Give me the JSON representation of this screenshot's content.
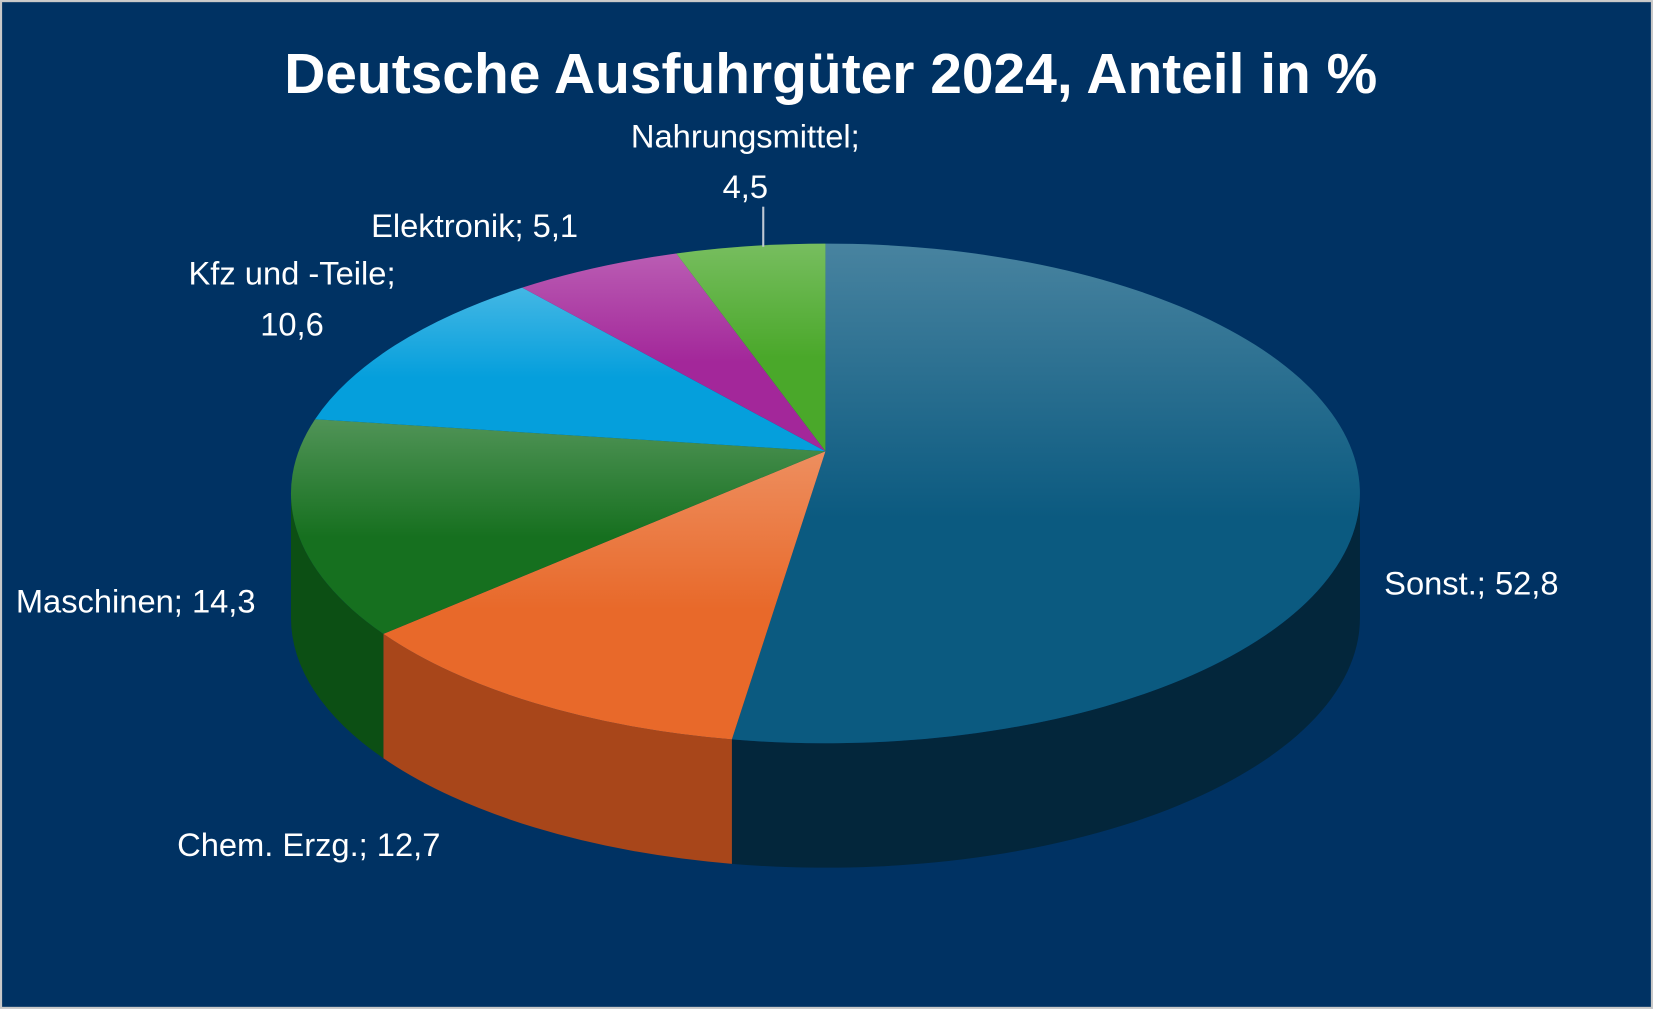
{
  "chart_data": {
    "type": "pie",
    "style": "3d",
    "title": "Deutsche Ausfuhrgüter 2024, Anteil in %",
    "start": "top",
    "direction": "clockwise",
    "slices": [
      {
        "name": "Sonst.",
        "value": 52.8,
        "label": "Sonst.; 52,8",
        "color": "#0b5a80",
        "side_color": "#03263b"
      },
      {
        "name": "Chem. Erzg.",
        "value": 12.7,
        "label": "Chem. Erzg.; 12,7",
        "color": "#e8692a",
        "side_color": "#a8461a"
      },
      {
        "name": "Maschinen",
        "value": 14.3,
        "label": "Maschinen; 14,3",
        "color": "#16701f",
        "side_color": "#0c4f14"
      },
      {
        "name": "Kfz und -Teile",
        "value": 10.6,
        "label_lines": [
          "Kfz und -Teile;",
          "10,6"
        ],
        "color": "#059fdc",
        "side_color": "#04709c"
      },
      {
        "name": "Elektronik",
        "value": 5.1,
        "label": "Elektronik; 5,1",
        "color": "#a3279a",
        "side_color": "#6d1a67"
      },
      {
        "name": "Nahrungsmittel",
        "value": 4.5,
        "label_lines": [
          "Nahrungsmittel;",
          "4,5"
        ],
        "color": "#4aa82a",
        "side_color": "#2f701a"
      }
    ],
    "background": "#003263",
    "border": "#c8c8c8"
  }
}
